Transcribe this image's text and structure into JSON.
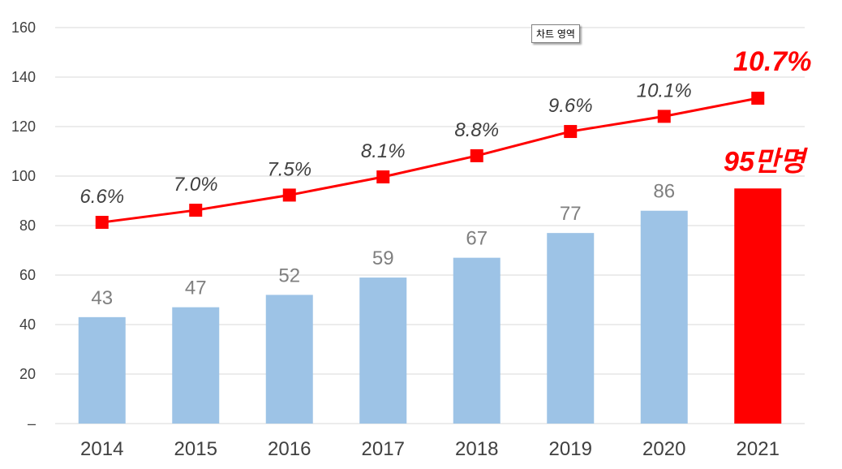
{
  "tooltip": {
    "label": "차트 영역"
  },
  "colors": {
    "bar": "#9dc3e6",
    "bar_highlight": "#ff0000",
    "line": "#ff0000",
    "gridline": "#d9d9d9"
  },
  "chart_data": {
    "type": "bar",
    "categories": [
      "2014",
      "2015",
      "2016",
      "2017",
      "2018",
      "2019",
      "2020",
      "2021"
    ],
    "ylim": [
      0,
      160
    ],
    "yticks": [
      0,
      20,
      40,
      60,
      80,
      100,
      120,
      140,
      160
    ],
    "ytick_labels": [
      "–",
      "20",
      "40",
      "60",
      "80",
      "100",
      "120",
      "140",
      "160"
    ],
    "grid": true,
    "series": [
      {
        "type": "bar",
        "values": [
          43,
          47,
          52,
          59,
          67,
          77,
          86,
          95
        ],
        "labels": [
          "43",
          "47",
          "52",
          "59",
          "67",
          "77",
          "86",
          "95만명"
        ],
        "highlight_index": 7
      },
      {
        "type": "line",
        "values": [
          6.6,
          7.0,
          7.5,
          8.1,
          8.8,
          9.6,
          10.1,
          10.7
        ],
        "labels": [
          "6.6%",
          "7.0%",
          "7.5%",
          "8.1%",
          "8.8%",
          "9.6%",
          "10.1%",
          "10.7%"
        ],
        "highlight_index": 7
      }
    ]
  }
}
